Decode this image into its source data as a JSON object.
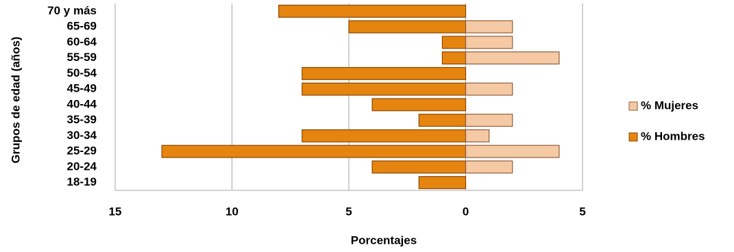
{
  "chart_data": {
    "type": "bar",
    "orientation": "horizontal",
    "y_label": "Grupos de edad (años)",
    "x_label": "Porcentajes",
    "categories": [
      "18-19",
      "20-24",
      "25-29",
      "30-34",
      "35-39",
      "40-44",
      "45-49",
      "50-54",
      "55-59",
      "60-64",
      "65-69",
      "70 y más"
    ],
    "series": [
      {
        "name": "% Hombres",
        "color": "#e5850f",
        "values": [
          -2,
          -4,
          -13,
          -7,
          -2,
          -4,
          -7,
          -7,
          -1,
          -1,
          -5,
          -8
        ]
      },
      {
        "name": "% Mujeres",
        "color": "#f5c9a3",
        "values": [
          0,
          2,
          4,
          1,
          2,
          0,
          2,
          0,
          4,
          2,
          2,
          0
        ]
      }
    ],
    "xlim": [
      -15,
      5
    ],
    "xticks": [
      {
        "value": -15,
        "label": "15"
      },
      {
        "value": -10,
        "label": "10"
      },
      {
        "value": -5,
        "label": "5"
      },
      0,
      5
    ],
    "grid": true,
    "legend": "right"
  }
}
